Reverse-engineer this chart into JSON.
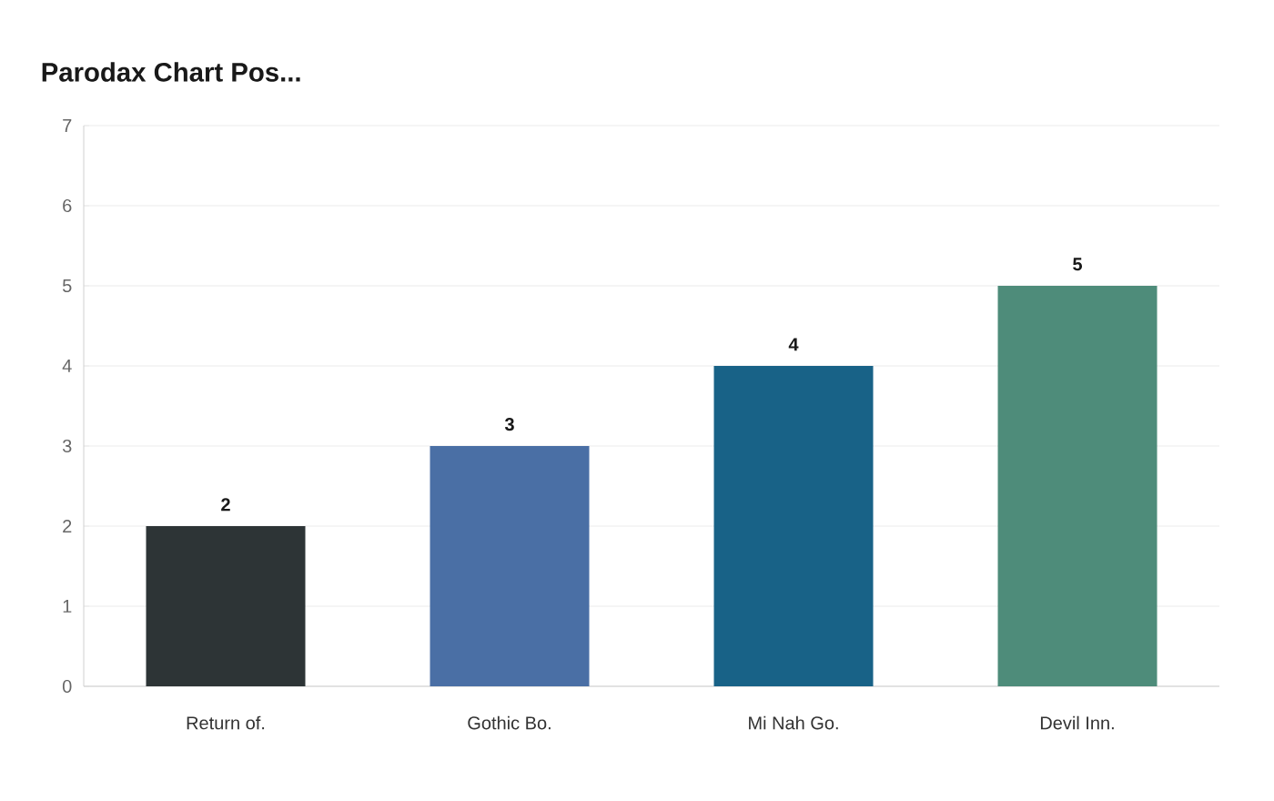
{
  "chart_data": {
    "type": "bar",
    "title": "Parodax Chart Pos...",
    "categories": [
      "Return of.",
      "Gothic Bo.",
      "Mi Nah Go.",
      "Devil Inn."
    ],
    "values": [
      2,
      3,
      4,
      5
    ],
    "colors": [
      "#2d3436",
      "#4a6fa5",
      "#186287",
      "#4e8c7a"
    ],
    "ylim": [
      0,
      7
    ],
    "yticks": [
      0,
      1,
      2,
      3,
      4,
      5,
      6,
      7
    ],
    "grid": "y",
    "data_labels": true
  }
}
